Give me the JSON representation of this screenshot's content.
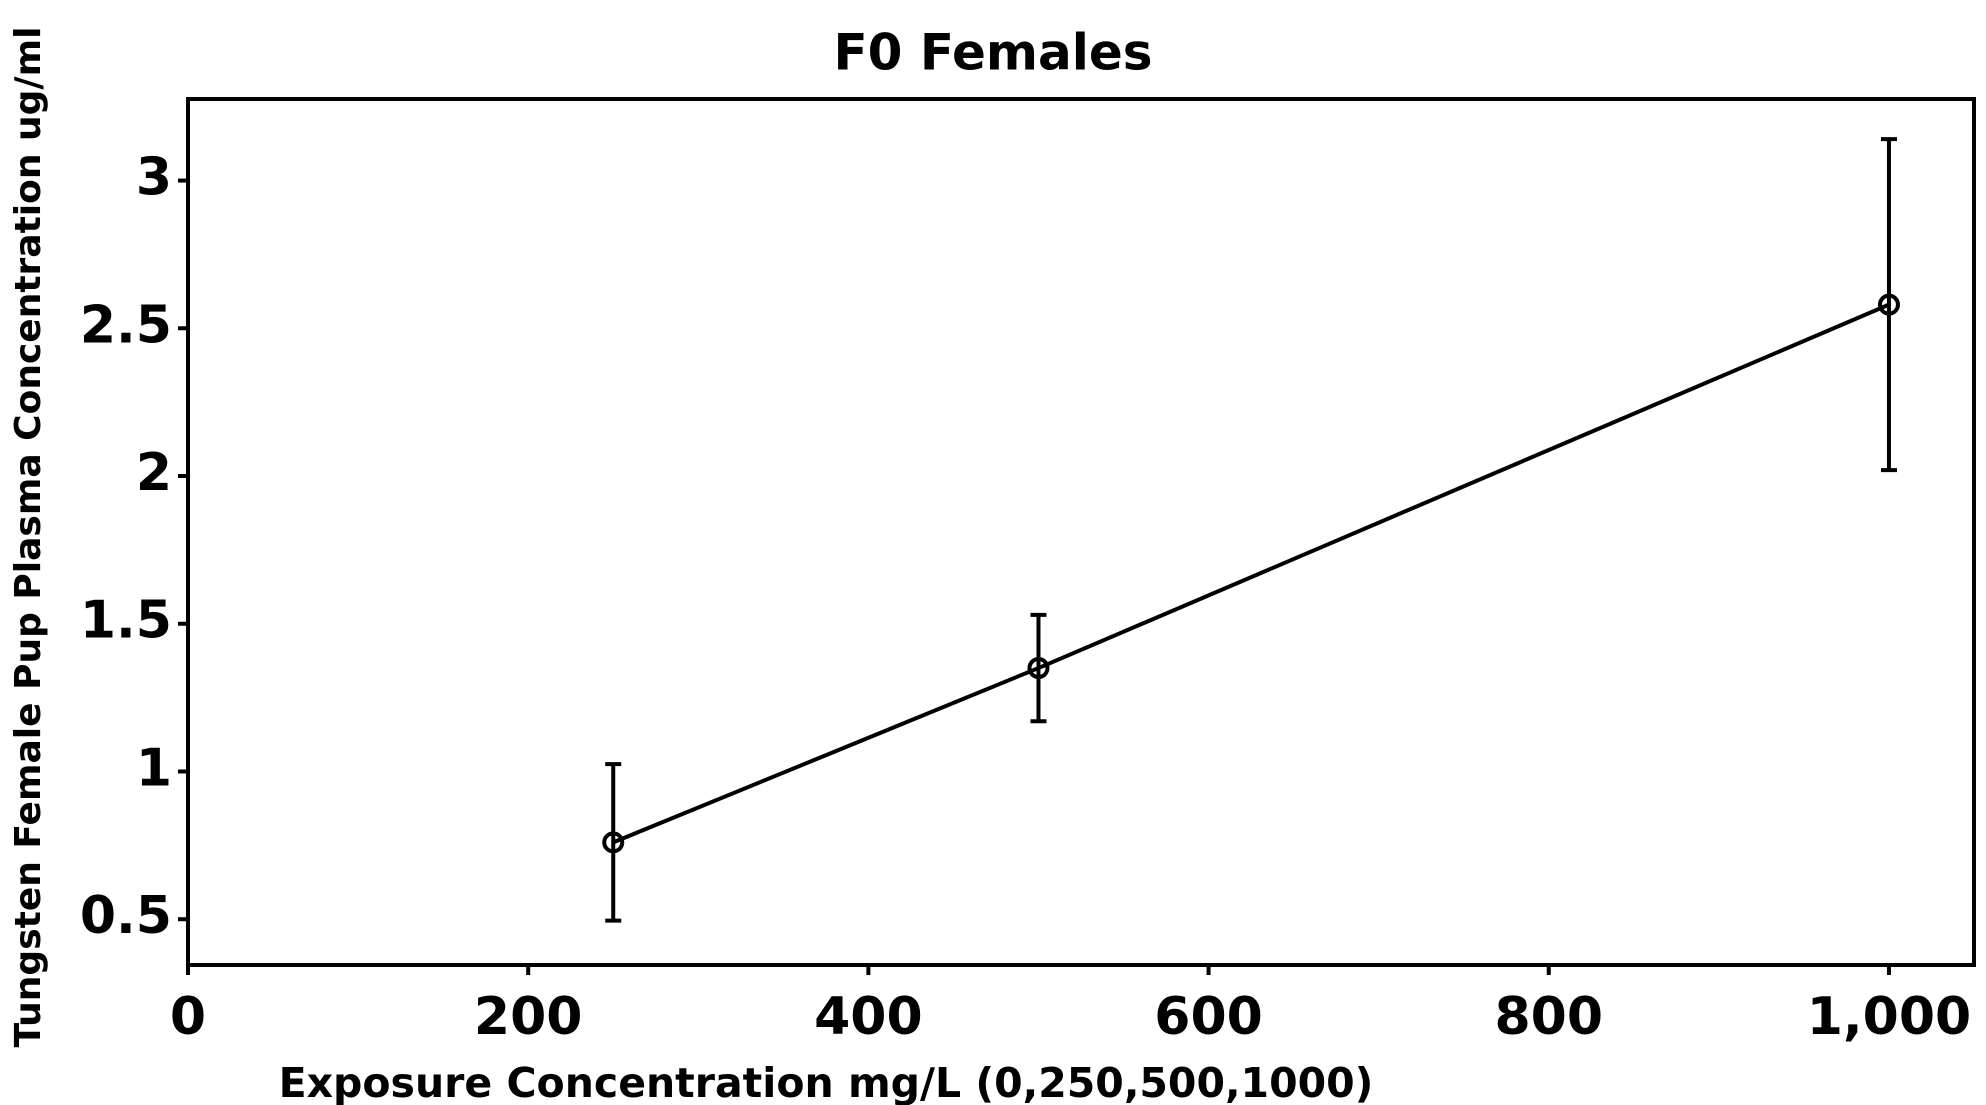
{
  "chart_data": {
    "type": "line",
    "title": "F0 Females",
    "x_label": "Exposure Concentration mg/L (0,250,500,1000)",
    "y_label": "Tungsten Female Pup Plasma Concentration ug/ml",
    "x": [
      250,
      500,
      1000
    ],
    "values": [
      0.76,
      1.35,
      2.58
    ],
    "errors": [
      0.265,
      0.18,
      0.56
    ],
    "color": "#000000",
    "xlim": [
      0,
      1050
    ],
    "ylim": [
      0.345,
      3.276
    ],
    "xticks": [
      0,
      200,
      400,
      600,
      800,
      {
        "value": 1000,
        "label": "1,000"
      }
    ],
    "yticks": [
      0.5,
      1,
      1.5,
      2,
      2.5,
      3
    ]
  }
}
